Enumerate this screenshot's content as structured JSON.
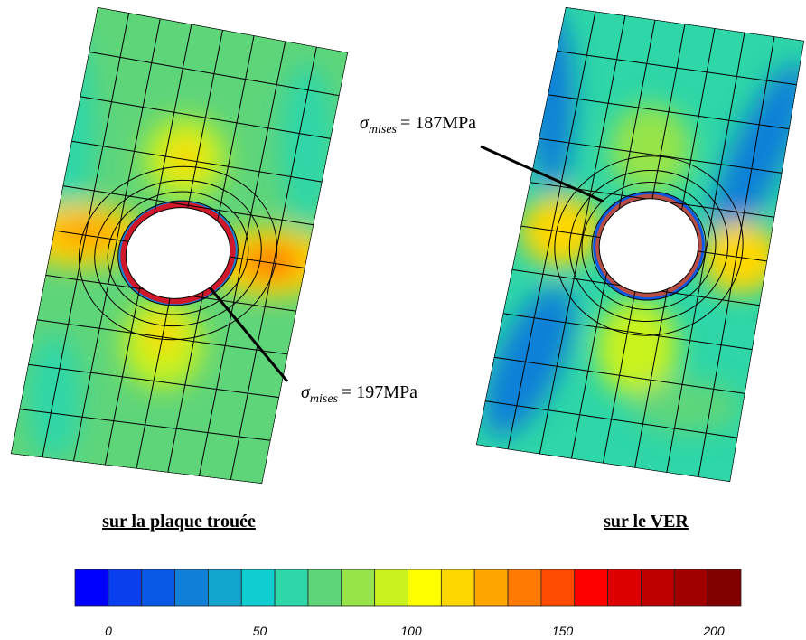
{
  "panels": [
    {
      "caption": "sur la plaque trouée"
    },
    {
      "caption": "sur le VER"
    }
  ],
  "annotations": [
    {
      "symbol": "σ",
      "subscript": "mises",
      "text": "= 197MPa"
    },
    {
      "symbol": "σ",
      "subscript": "mises",
      "text": "= 187MPa"
    }
  ],
  "colorbar": {
    "colors": [
      "#0000ff",
      "#0a3ff0",
      "#0a58e6",
      "#0f7fd8",
      "#11a5d0",
      "#0fcdd0",
      "#2ed6a8",
      "#5fd57a",
      "#96e44a",
      "#c9f21e",
      "#ffff00",
      "#ffd700",
      "#ffa500",
      "#ff7a00",
      "#ff4a00",
      "#ff0000",
      "#dc0000",
      "#be0000",
      "#a00000",
      "#800000"
    ],
    "ticks": [
      0,
      50,
      100,
      150,
      200
    ]
  }
}
